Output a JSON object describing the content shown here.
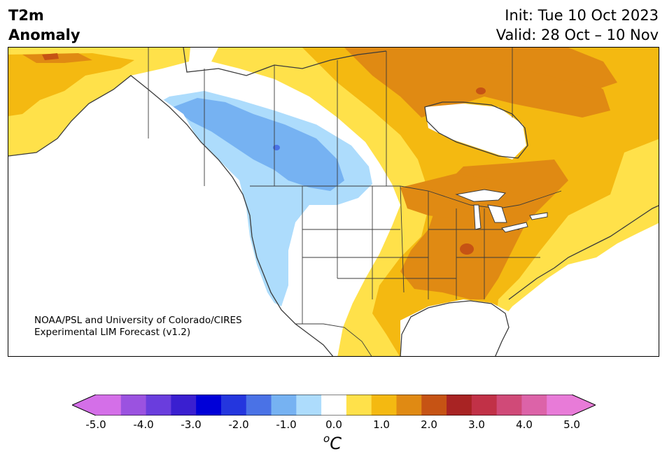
{
  "header": {
    "variable": "T2m",
    "quantity": "Anomaly",
    "init": "Init: Tue 10 Oct 2023",
    "valid": "Valid: 28 Oct – 10 Nov"
  },
  "credit": {
    "line1": "NOAA/PSL and University of Colorado/CIRES",
    "line2": "Experimental LIM Forecast (v1.2)"
  },
  "colorbar": {
    "unit_main": "C",
    "unit_sup": "o",
    "ticks": [
      "-5.0",
      "-4.0",
      "-3.0",
      "-2.0",
      "-1.0",
      "0.0",
      "1.0",
      "2.0",
      "3.0",
      "4.0",
      "5.0"
    ],
    "levels": [
      -5.0,
      -4.5,
      -4.0,
      -3.5,
      -3.0,
      -2.5,
      -2.0,
      -1.5,
      -1.0,
      -0.5,
      0.5,
      1.0,
      1.5,
      2.0,
      2.5,
      3.0,
      3.5,
      4.0,
      4.5,
      5.0
    ],
    "colors": [
      "#d46fe8",
      "#9b52e0",
      "#6a3ddd",
      "#3a1fd0",
      "#0000d8",
      "#2436de",
      "#4a72e6",
      "#76b2f2",
      "#addcfc",
      "#ffffff",
      "#ffe14a",
      "#f4b911",
      "#e08a13",
      "#c65314",
      "#a82323",
      "#c13147",
      "#d04a78",
      "#dc63a8",
      "#e87bd8"
    ],
    "under_color": "#d46fe8",
    "over_color": "#e87bd8"
  },
  "map": {
    "region": "North America",
    "colors": {
      "land_outline": "#3b3b3b",
      "ocean": "#ffffff"
    }
  }
}
